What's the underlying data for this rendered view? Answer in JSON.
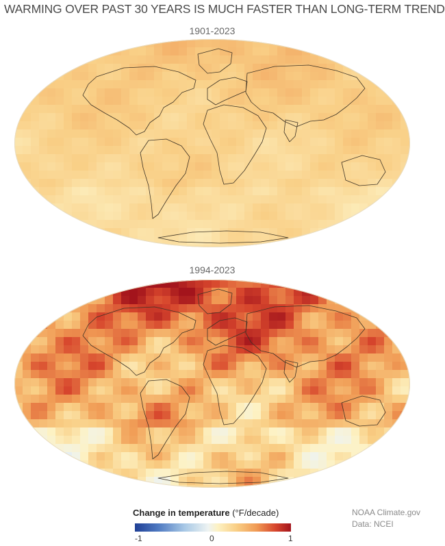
{
  "title": "WARMING OVER PAST 30 YEARS IS MUCH FASTER THAN LONG-TERM TREND",
  "maps": [
    {
      "label": "1901-2023",
      "intensity": 0.35
    },
    {
      "label": "1994-2023",
      "intensity": 1.0
    }
  ],
  "legend": {
    "title_bold": "Change in temperature",
    "title_units": "(°F/decade)",
    "min": "-1",
    "mid": "0",
    "max": "1",
    "colors": [
      "#1f3f95",
      "#4f7ac2",
      "#a9c9e6",
      "#eef3f2",
      "#fdf2c4",
      "#f9cf86",
      "#f09a54",
      "#d7462d",
      "#a3141c"
    ]
  },
  "credits": {
    "line1": "NOAA Climate.gov",
    "line2": "Data: NCEI"
  }
}
